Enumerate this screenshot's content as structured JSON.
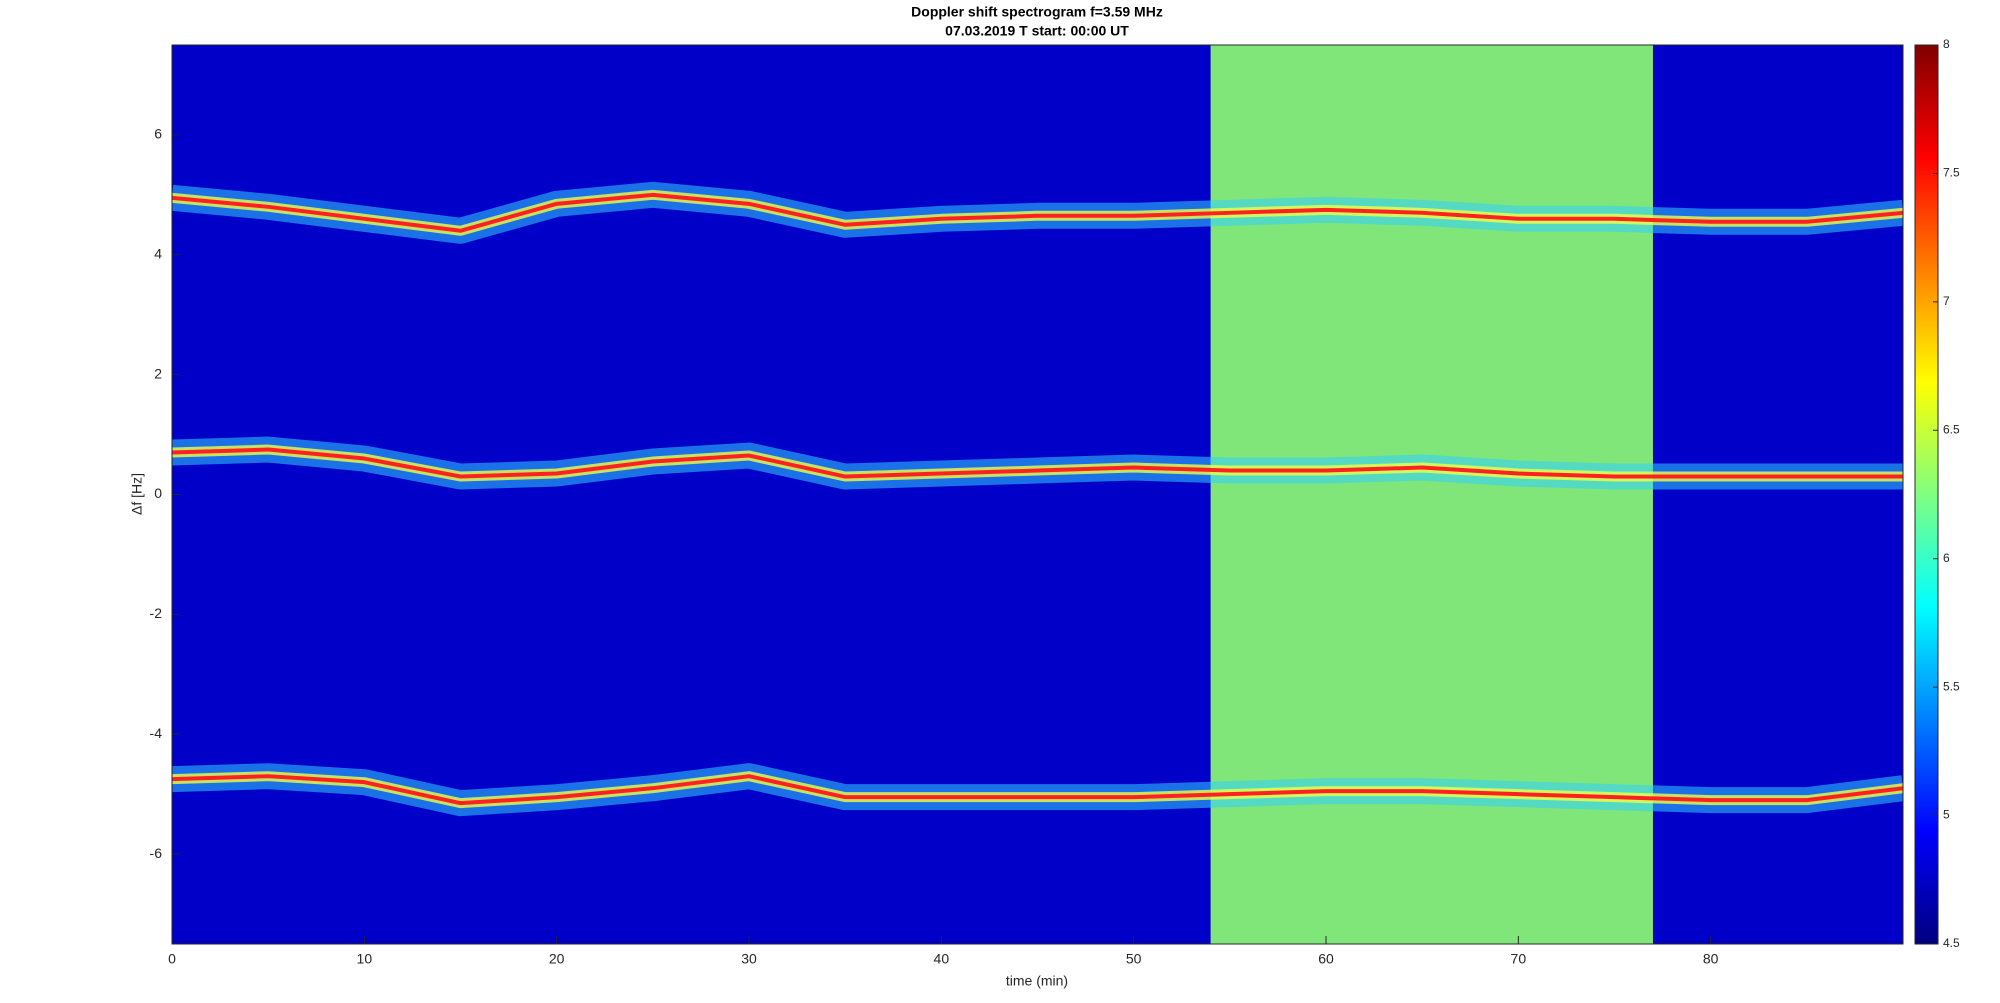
{
  "chart_data": {
    "type": "spectrogram",
    "title": "Doppler shift spectrogram f=3.59 MHz",
    "subtitle": "07.03.2019    T start: 00:00 UT",
    "x_label": "time (min)",
    "y_label": "Δf [Hz]",
    "xlim": [
      0,
      90
    ],
    "xticks": [
      0,
      10,
      20,
      30,
      40,
      50,
      60,
      70,
      80
    ],
    "ylim": [
      -7.5,
      7.5
    ],
    "yticks": [
      -6,
      -4,
      -2,
      0,
      2,
      4,
      6
    ],
    "clim": [
      4.5,
      8
    ],
    "cticks": [
      4.5,
      5,
      5.5,
      6,
      6.5,
      7,
      7.5,
      8
    ],
    "colormap": "jet",
    "background_value": 4.75,
    "regions": [
      {
        "x": [
          54,
          77
        ],
        "value": 6.3
      }
    ],
    "x": [
      0,
      5,
      10,
      15,
      20,
      25,
      30,
      35,
      40,
      45,
      50,
      55,
      60,
      65,
      70,
      75,
      80,
      85,
      90
    ],
    "series": [
      {
        "color": "#ff2020",
        "values": [
          4.95,
          4.8,
          4.6,
          4.4,
          4.85,
          5.0,
          4.85,
          4.5,
          4.6,
          4.65,
          4.65,
          4.7,
          4.75,
          4.7,
          4.6,
          4.6,
          4.55,
          4.55,
          4.7
        ]
      },
      {
        "color": "#ff2020",
        "values": [
          0.7,
          0.75,
          0.6,
          0.3,
          0.35,
          0.55,
          0.65,
          0.3,
          0.35,
          0.4,
          0.45,
          0.4,
          0.4,
          0.45,
          0.35,
          0.3,
          0.3,
          0.3,
          0.3
        ]
      },
      {
        "color": "#ff2020",
        "values": [
          -4.75,
          -4.7,
          -4.8,
          -5.15,
          -5.05,
          -4.9,
          -4.7,
          -5.05,
          -5.05,
          -5.05,
          -5.05,
          -5.0,
          -4.95,
          -4.95,
          -5.0,
          -5.05,
          -5.1,
          -5.1,
          -4.9
        ]
      }
    ]
  }
}
